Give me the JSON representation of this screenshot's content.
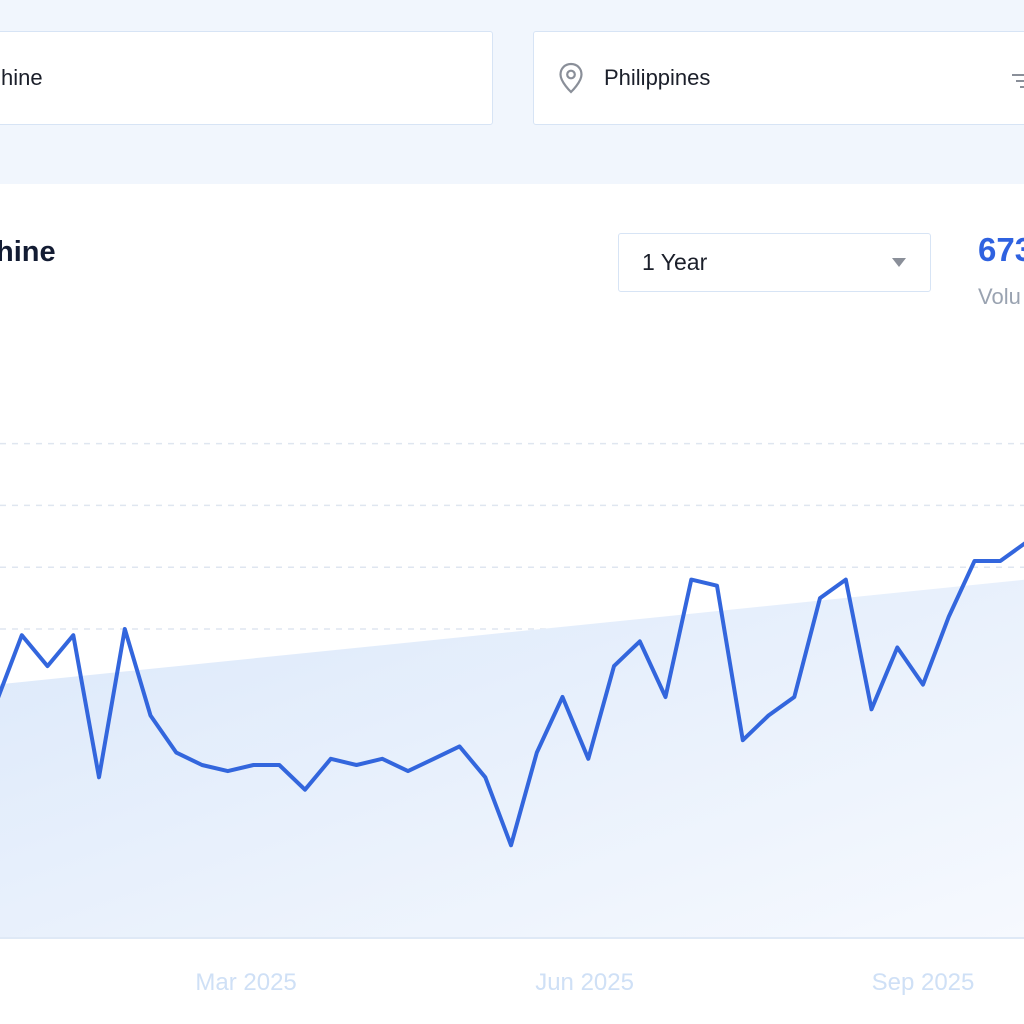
{
  "search": {
    "keyword_value": "hine",
    "location_value": "Philippines"
  },
  "icons": {
    "location": "map-pin-icon",
    "filter": "filter-icon",
    "caret": "caret-down-icon"
  },
  "card": {
    "title": "hine",
    "range_selected": "1 Year",
    "volume_value": "673",
    "volume_label": "Volu"
  },
  "colors": {
    "accent": "#2f62e0",
    "line": "#3366dd",
    "area_fill": "#dce9fa",
    "page_bg": "#f1f6fd"
  },
  "chart_data": {
    "type": "line",
    "x_ticks": [
      "Mar 2025",
      "Jun 2025",
      "Sep 2025"
    ],
    "x": [
      "2024-12-23",
      "2024-12-30",
      "2025-01-06",
      "2025-01-13",
      "2025-01-20",
      "2025-01-27",
      "2025-02-03",
      "2025-02-10",
      "2025-02-17",
      "2025-02-24",
      "2025-03-03",
      "2025-03-10",
      "2025-03-17",
      "2025-03-24",
      "2025-03-31",
      "2025-04-07",
      "2025-04-14",
      "2025-04-21",
      "2025-04-28",
      "2025-05-05",
      "2025-05-12",
      "2025-05-19",
      "2025-05-26",
      "2025-06-02",
      "2025-06-09",
      "2025-06-16",
      "2025-06-23",
      "2025-06-30",
      "2025-07-07",
      "2025-07-14",
      "2025-07-21",
      "2025-07-28",
      "2025-08-04",
      "2025-08-11",
      "2025-08-18",
      "2025-08-25",
      "2025-09-01",
      "2025-09-08",
      "2025-09-15",
      "2025-09-22",
      "2025-09-29"
    ],
    "series": [
      {
        "values": [
          62,
          51,
          56,
          51,
          74,
          50,
          64,
          70,
          72,
          73,
          72,
          72,
          76,
          71,
          72,
          71,
          73,
          71,
          69,
          74,
          85,
          70,
          61,
          71,
          56,
          52,
          61,
          42,
          43,
          68,
          64,
          61,
          45,
          42,
          63,
          53,
          59,
          48,
          39,
          39,
          36
        ]
      }
    ],
    "trend": {
      "start": 59,
      "end": 42
    },
    "ylim": [
      0,
      100
    ],
    "grid": true,
    "y_ticks_visible": false
  }
}
